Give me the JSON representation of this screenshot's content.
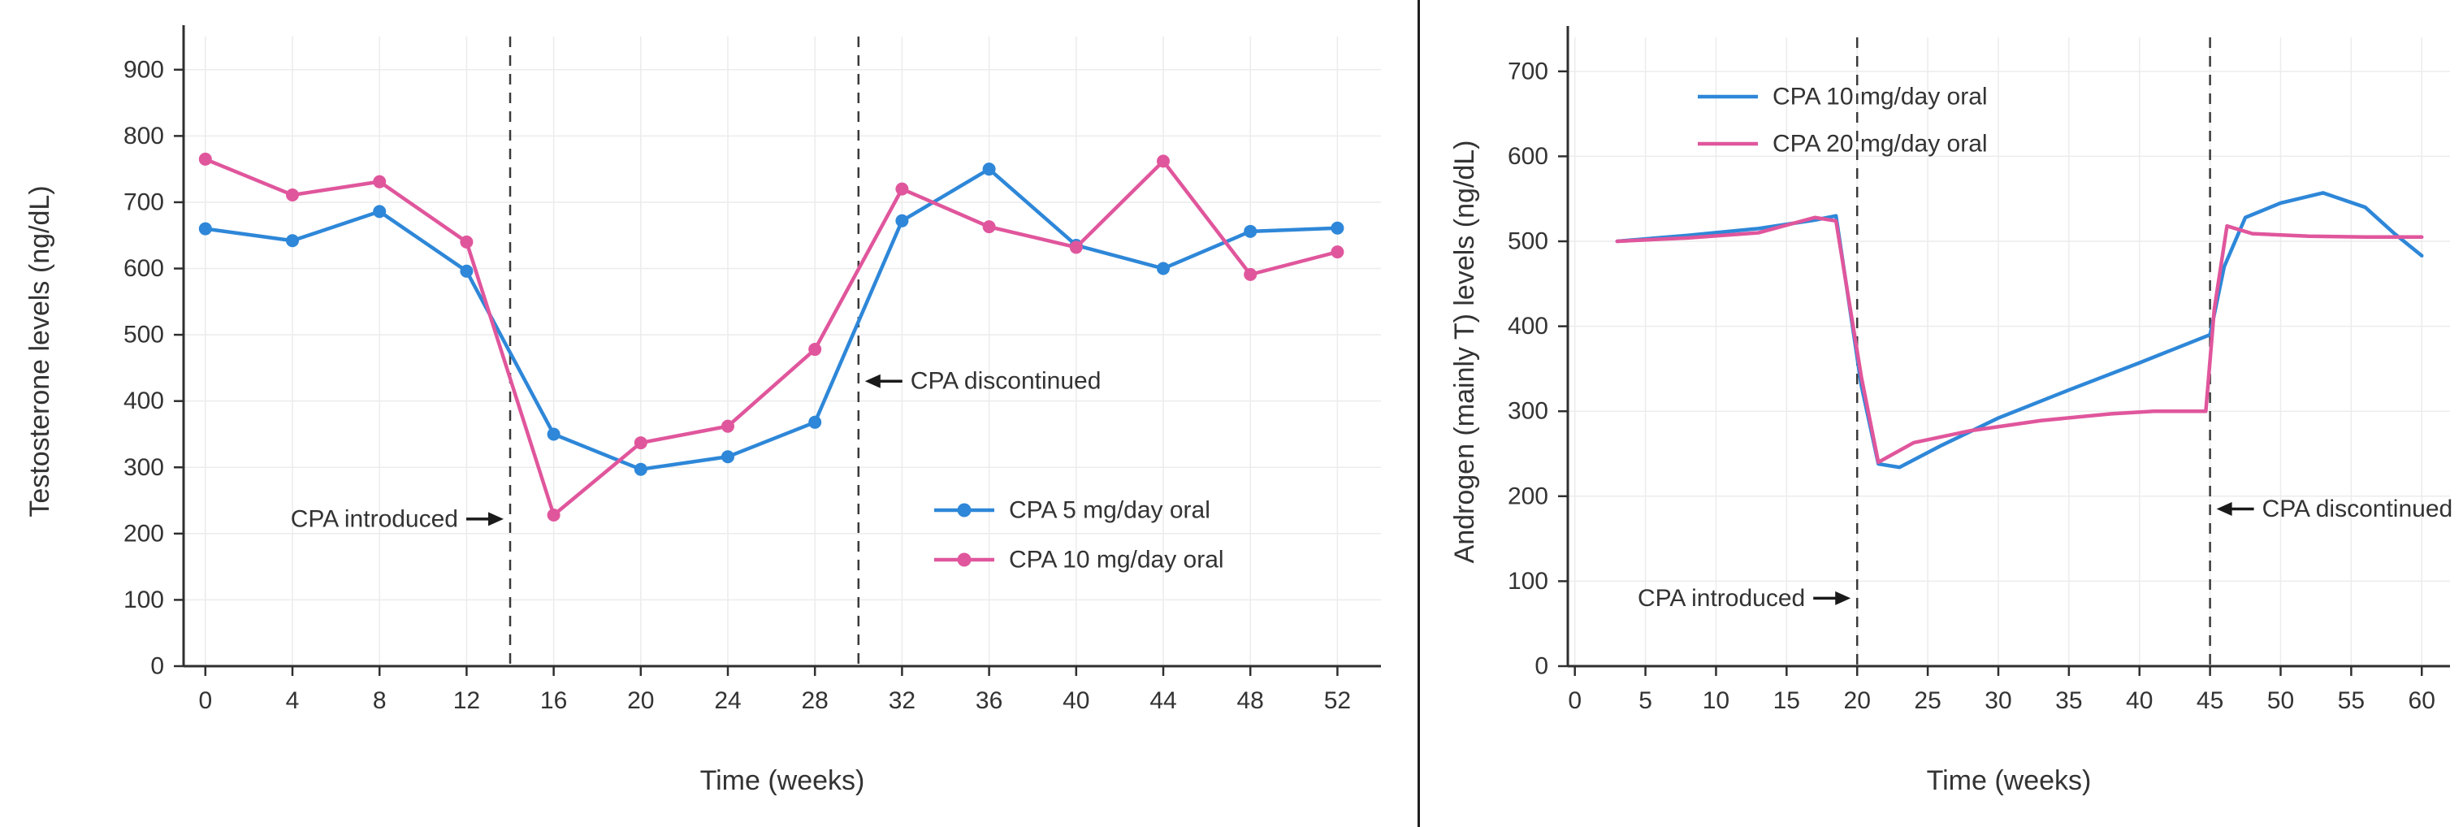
{
  "page": {
    "background": "#ffffff",
    "divider_color": "#1f1f1f",
    "text_color": "#333333",
    "grid_color": "#ececec",
    "axis_color": "#2f2f2f",
    "vline_color": "#3a3a3a"
  },
  "chart_data": [
    {
      "type": "line",
      "title": "",
      "xlabel": "Time (weeks)",
      "ylabel": "Testosterone levels (ng/dL)",
      "xlim": [
        -1,
        54
      ],
      "ylim": [
        0,
        950
      ],
      "xticks": [
        0,
        4,
        8,
        12,
        16,
        20,
        24,
        28,
        32,
        36,
        40,
        44,
        48,
        52
      ],
      "yticks": [
        0,
        100,
        200,
        300,
        400,
        500,
        600,
        700,
        800,
        900
      ],
      "grid": true,
      "legend_position": "inside-lower-right",
      "x": [
        0,
        4,
        8,
        12,
        16,
        20,
        24,
        28,
        32,
        36,
        40,
        44,
        48,
        52
      ],
      "series": [
        {
          "name": "CPA 5 mg/day oral",
          "color": "#2e87d8",
          "marker": true,
          "values": [
            660,
            642,
            686,
            596,
            350,
            297,
            316,
            368,
            672,
            750,
            635,
            600,
            656,
            661
          ]
        },
        {
          "name": "CPA 10 mg/day oral",
          "color": "#e0569c",
          "marker": true,
          "values": [
            765,
            711,
            731,
            640,
            228,
            337,
            362,
            478,
            720,
            663,
            632,
            762,
            591,
            625
          ]
        }
      ],
      "vlines": [
        {
          "x": 14,
          "style": "dashed"
        },
        {
          "x": 30,
          "style": "dashed"
        }
      ],
      "annotations": [
        {
          "text": "CPA introduced",
          "arrow": "right",
          "x": 14,
          "y": 222
        },
        {
          "text": "CPA discontinued",
          "arrow": "left",
          "x": 30,
          "y": 430
        }
      ]
    },
    {
      "type": "line",
      "title": "",
      "xlabel": "Time (weeks)",
      "ylabel": "Androgen (mainly T) levels (ng/dL)",
      "xlim": [
        -0.5,
        62
      ],
      "ylim": [
        0,
        740
      ],
      "xticks": [
        0,
        5,
        10,
        15,
        20,
        25,
        30,
        35,
        40,
        45,
        50,
        55,
        60
      ],
      "yticks": [
        0,
        100,
        200,
        300,
        400,
        500,
        600,
        700
      ],
      "grid": true,
      "legend_position": "inside-top-left",
      "series": [
        {
          "name": "CPA 10 mg/day oral",
          "color": "#2e87d8",
          "marker": false,
          "x": [
            3,
            8,
            13,
            17,
            18.5,
            20.3,
            21.5,
            23,
            26,
            30,
            35,
            40,
            45,
            46,
            47.5,
            50,
            53,
            56,
            58,
            60
          ],
          "values": [
            500,
            507,
            515,
            525,
            530,
            330,
            238,
            234,
            260,
            292,
            325,
            357,
            390,
            470,
            528,
            545,
            557,
            540,
            510,
            483
          ]
        },
        {
          "name": "CPA 20 mg/day oral",
          "color": "#e0569c",
          "marker": false,
          "x": [
            3,
            8,
            13,
            17,
            18.5,
            20.3,
            21.5,
            24,
            28,
            33,
            38,
            41,
            44.7,
            45.3,
            46.2,
            48,
            52,
            56,
            60
          ],
          "values": [
            500,
            504,
            510,
            528,
            524,
            340,
            240,
            263,
            277,
            289,
            297,
            300,
            300,
            420,
            518,
            509,
            506,
            505,
            505
          ]
        }
      ],
      "vlines": [
        {
          "x": 20,
          "style": "dashed"
        },
        {
          "x": 45,
          "style": "dashed"
        }
      ],
      "annotations": [
        {
          "text": "CPA introduced",
          "arrow": "right",
          "x": 20,
          "y": 80
        },
        {
          "text": "CPA discontinued",
          "arrow": "left",
          "x": 45,
          "y": 185
        }
      ]
    }
  ]
}
